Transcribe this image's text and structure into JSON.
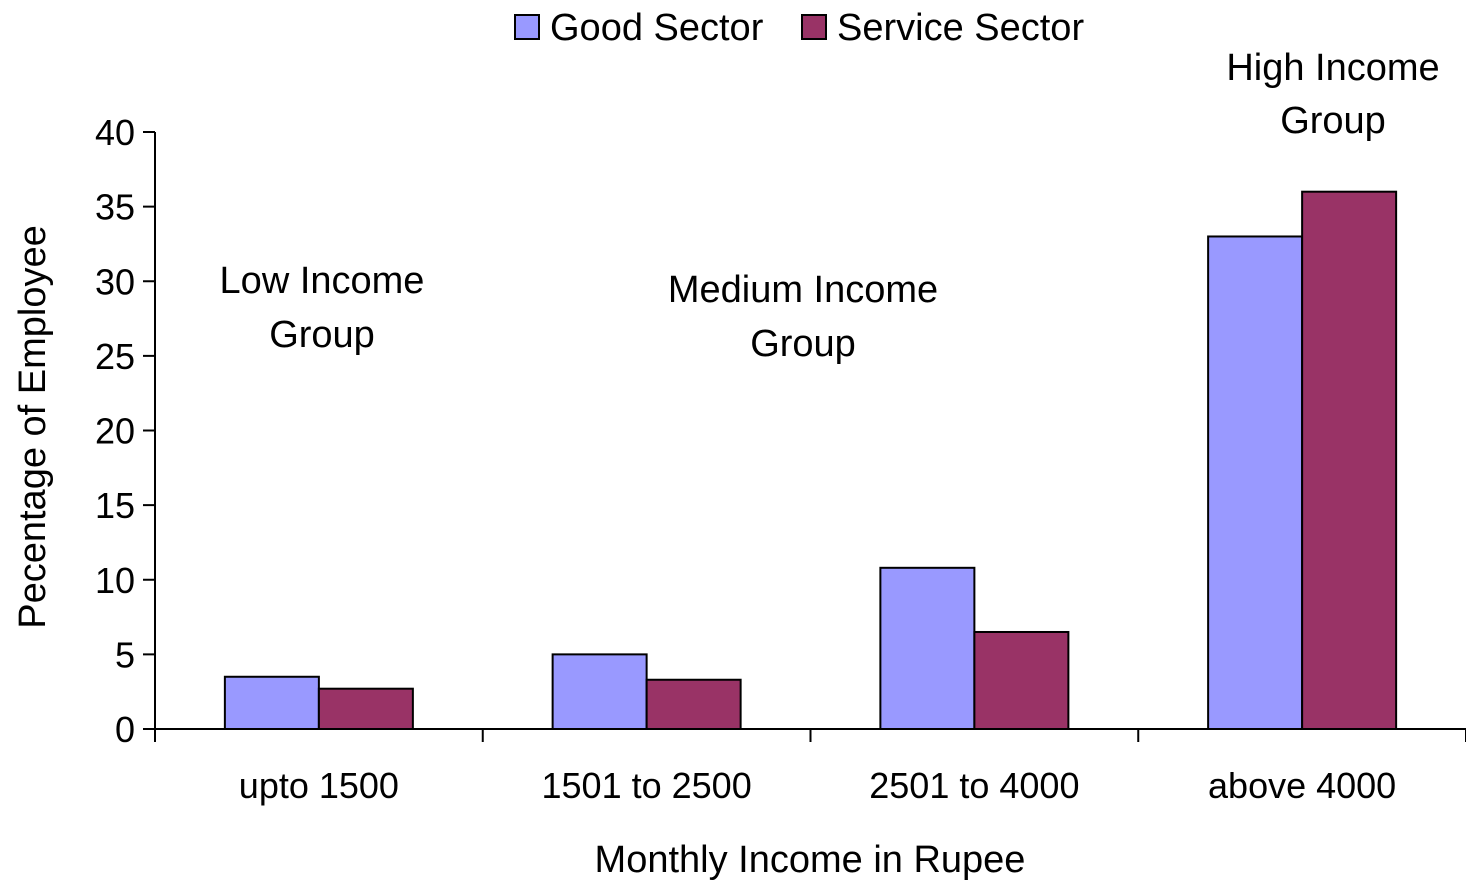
{
  "chart_data": {
    "type": "bar",
    "title": "",
    "xlabel": "Monthly Income in Rupee",
    "ylabel": "Pecentage of Employee",
    "ylim": [
      0,
      40
    ],
    "yticks": [
      "0",
      "5",
      "10",
      "15",
      "20",
      "25",
      "30",
      "35",
      "40"
    ],
    "categories": [
      "upto 1500",
      "1501 to 2500",
      "2501 to 4000",
      "above 4000"
    ],
    "series": [
      {
        "name": "Good Sector",
        "color": "#9999FF",
        "values": [
          3.5,
          5.0,
          10.8,
          33.0
        ]
      },
      {
        "name": "Service Sector",
        "color": "#993366",
        "values": [
          2.7,
          3.3,
          6.5,
          36.0
        ]
      }
    ],
    "legend": {
      "position": "top-center"
    },
    "grid": false,
    "annotations": [
      {
        "line1": "Low Income",
        "line2": "Group"
      },
      {
        "line1": "Medium Income",
        "line2": "Group"
      },
      {
        "line1": "High Income",
        "line2": "Group"
      }
    ]
  }
}
